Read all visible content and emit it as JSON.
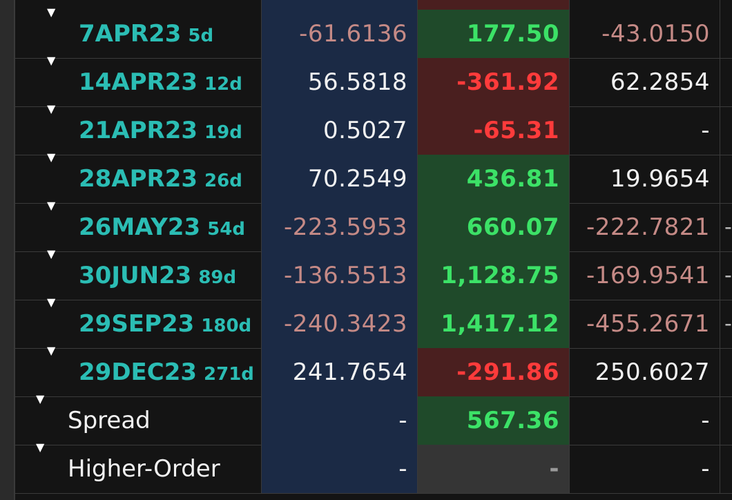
{
  "colors": {
    "teal_label": "#2bbdb4",
    "positive": "#3ce267",
    "negative": "#ff3b3b",
    "negative_muted": "#c58a86",
    "delta_bg": "#1b2a45",
    "green_bg": "#1f4a2a",
    "red_bg": "#4a1f1f"
  },
  "expander_icon": "▼",
  "rows": [
    {
      "label": "7APR23",
      "days": "5d",
      "delta": "-61.6136",
      "delta_neg": true,
      "pnl": "177.50",
      "pnl_sign": "pos",
      "gamma": "-43.0150",
      "gamma_neg": true,
      "extra": ""
    },
    {
      "label": "14APR23",
      "days": "12d",
      "delta": "56.5818",
      "delta_neg": false,
      "pnl": "-361.92",
      "pnl_sign": "neg",
      "gamma": "62.2854",
      "gamma_neg": false,
      "extra": ""
    },
    {
      "label": "21APR23",
      "days": "19d",
      "delta": "0.5027",
      "delta_neg": false,
      "pnl": "-65.31",
      "pnl_sign": "neg",
      "gamma": "-",
      "gamma_neg": false,
      "extra": ""
    },
    {
      "label": "28APR23",
      "days": "26d",
      "delta": "70.2549",
      "delta_neg": false,
      "pnl": "436.81",
      "pnl_sign": "pos",
      "gamma": "19.9654",
      "gamma_neg": false,
      "extra": ""
    },
    {
      "label": "26MAY23",
      "days": "54d",
      "delta": "-223.5953",
      "delta_neg": true,
      "pnl": "660.07",
      "pnl_sign": "pos",
      "gamma": "-222.7821",
      "gamma_neg": true,
      "extra": "-"
    },
    {
      "label": "30JUN23",
      "days": "89d",
      "delta": "-136.5513",
      "delta_neg": true,
      "pnl": "1,128.75",
      "pnl_sign": "pos",
      "gamma": "-169.9541",
      "gamma_neg": true,
      "extra": "-"
    },
    {
      "label": "29SEP23",
      "days": "180d",
      "delta": "-240.3423",
      "delta_neg": true,
      "pnl": "1,417.12",
      "pnl_sign": "pos",
      "gamma": "-455.2671",
      "gamma_neg": true,
      "extra": "-"
    },
    {
      "label": "29DEC23",
      "days": "271d",
      "delta": "241.7654",
      "delta_neg": false,
      "pnl": "-291.86",
      "pnl_sign": "neg",
      "gamma": "250.6027",
      "gamma_neg": false,
      "extra": ""
    },
    {
      "label": "Spread",
      "days": "",
      "delta": "-",
      "delta_neg": false,
      "pnl": "567.36",
      "pnl_sign": "pos",
      "gamma": "-",
      "gamma_neg": false,
      "extra": "",
      "summary": true
    },
    {
      "label": "Higher-Order",
      "days": "",
      "delta": "-",
      "delta_neg": false,
      "pnl": "-",
      "pnl_sign": "none",
      "gamma": "-",
      "gamma_neg": false,
      "extra": "",
      "summary": true
    }
  ]
}
